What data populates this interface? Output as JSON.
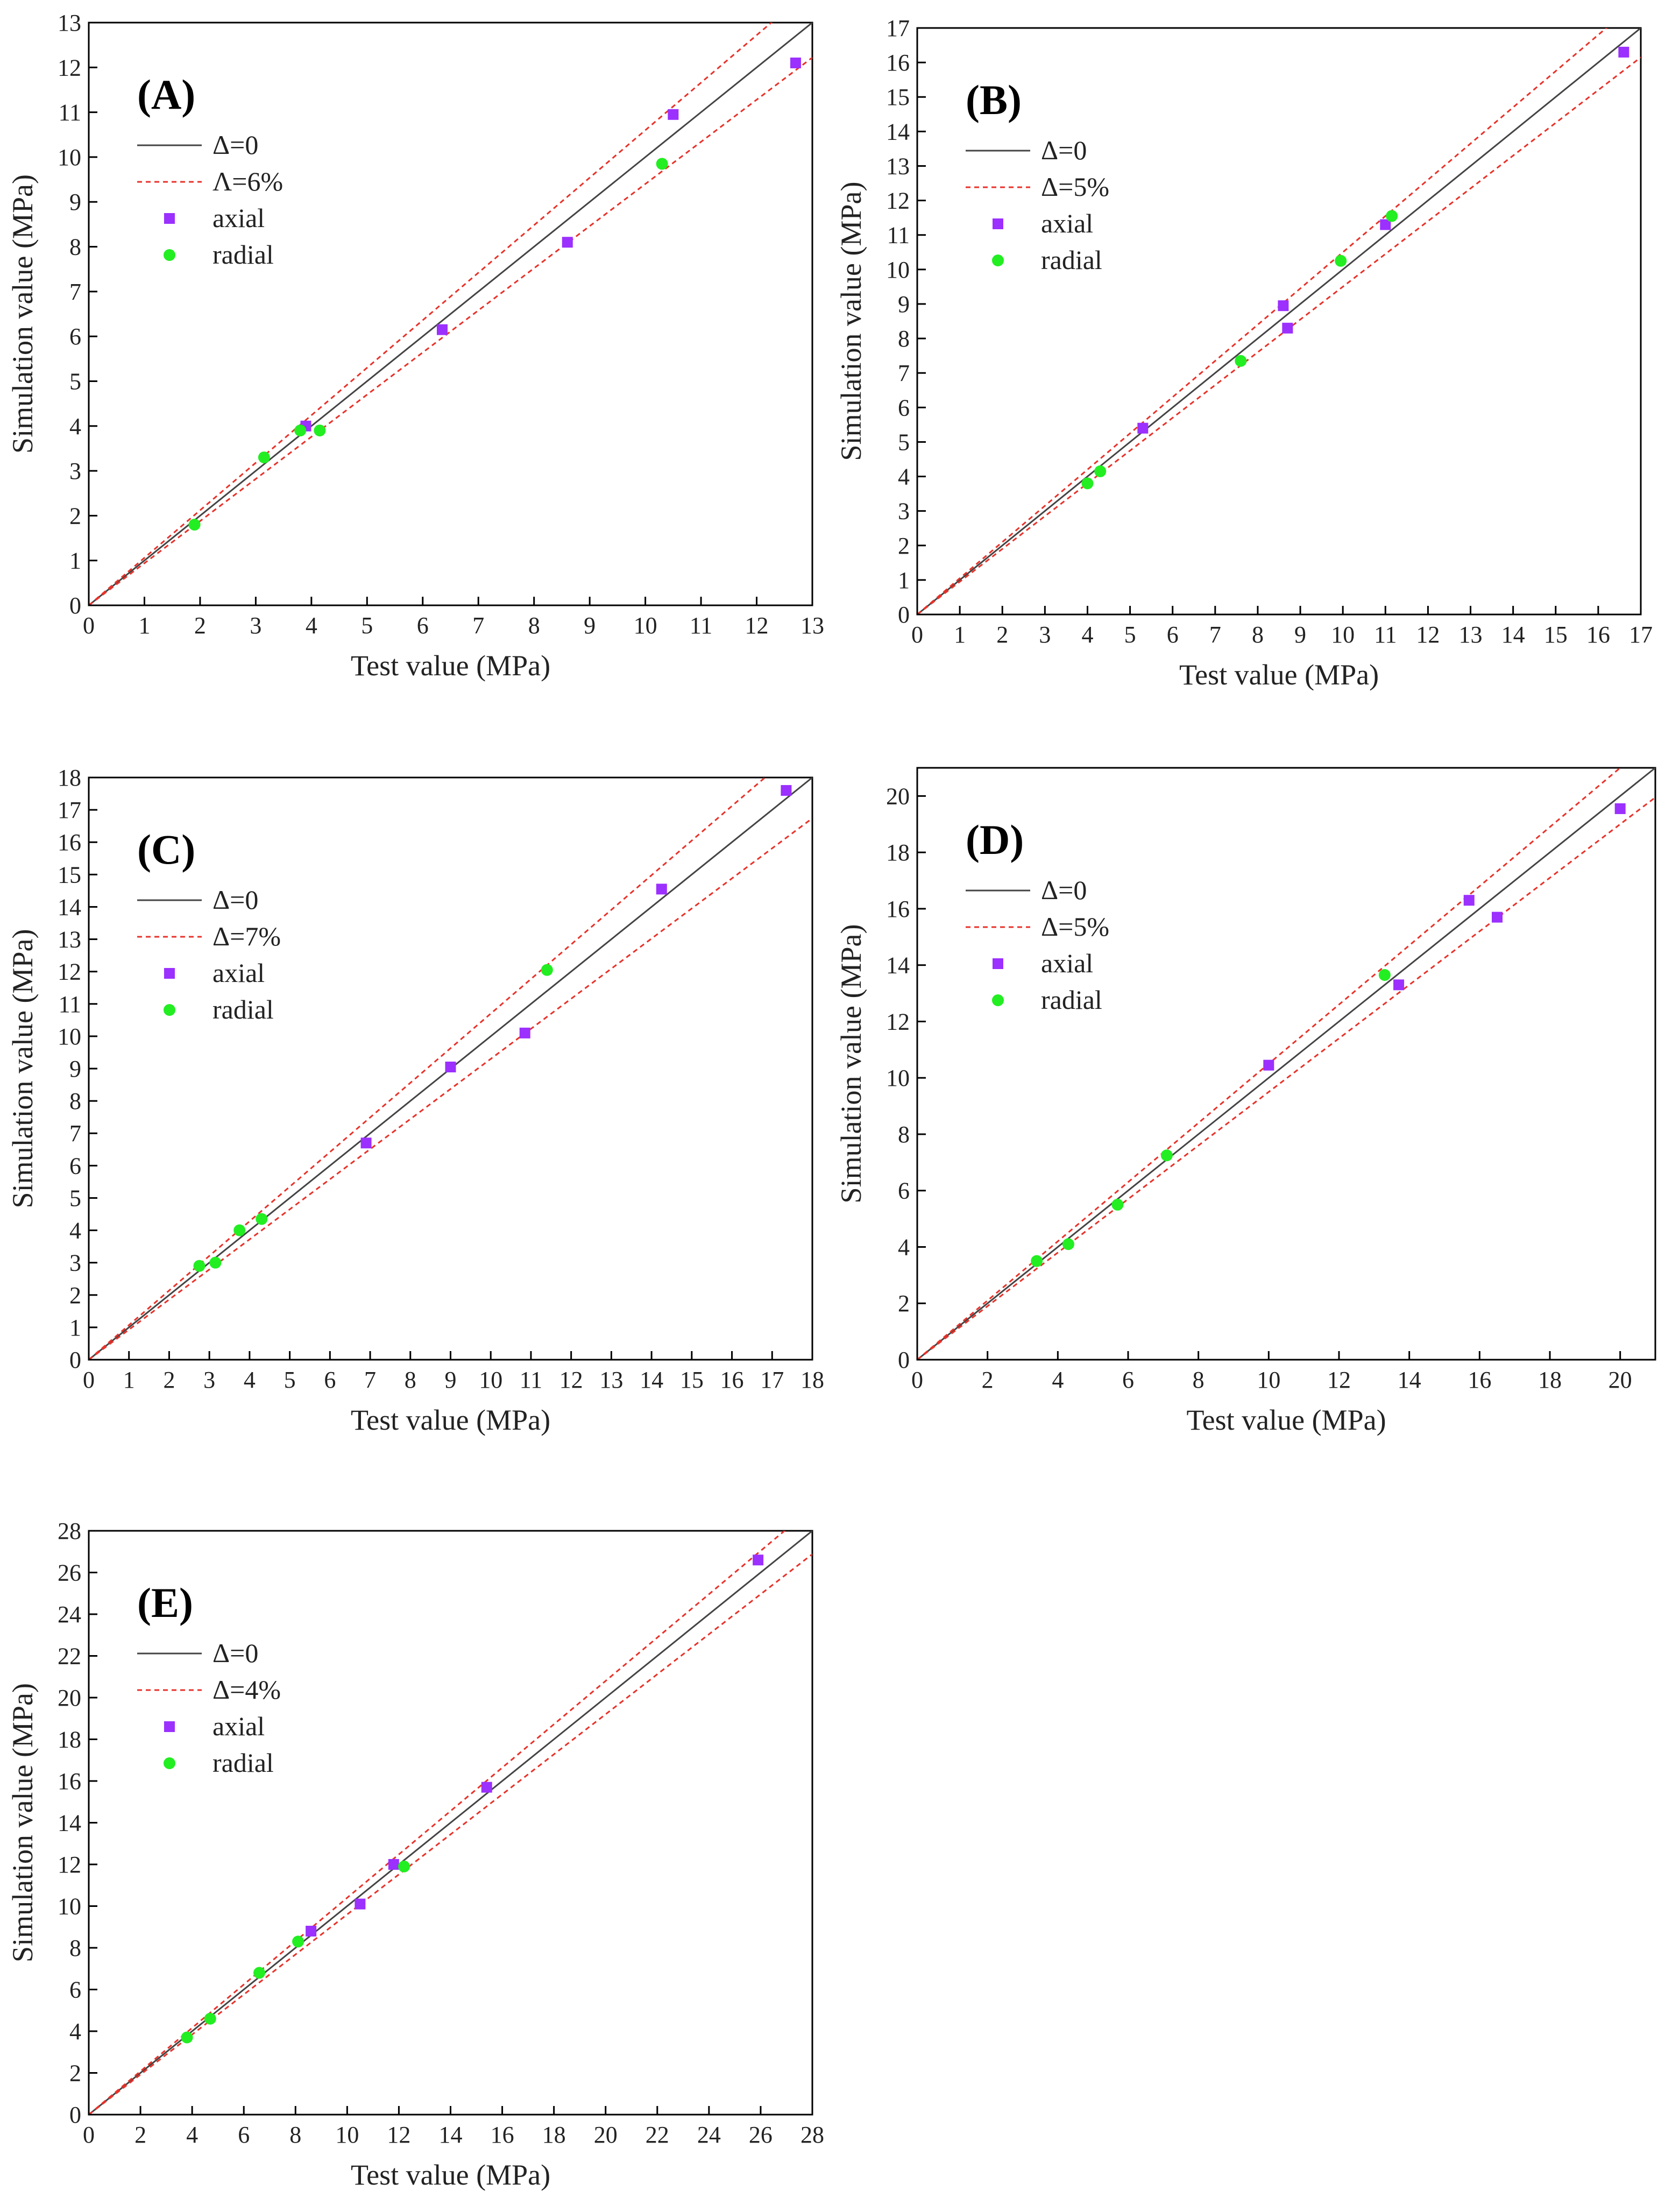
{
  "chart_data": [
    {
      "type": "scatter",
      "panel_label": "(A)",
      "xlabel": "Test value (MPa)",
      "ylabel": "Simulation value (MPa)",
      "xlim": [
        0,
        13
      ],
      "ylim": [
        0,
        13
      ],
      "xticks": [
        "0",
        "1",
        "2",
        "3",
        "4",
        "5",
        "6",
        "7",
        "8",
        "9",
        "10",
        "11",
        "12",
        "13"
      ],
      "yticks": [
        "0",
        "1",
        "2",
        "3",
        "4",
        "5",
        "6",
        "7",
        "8",
        "9",
        "10",
        "11",
        "12",
        "13"
      ],
      "legend": {
        "line_label": "Δ=0",
        "band_label": "Λ=6%",
        "axial_label": "axial",
        "radial_label": "radial",
        "position": "top-left"
      },
      "band_pct": 6,
      "series": [
        {
          "name": "axial",
          "marker": "square",
          "color": "#9b30ff",
          "points": [
            [
              3.9,
              4.0
            ],
            [
              6.35,
              6.15
            ],
            [
              8.6,
              8.1
            ],
            [
              10.5,
              10.95
            ],
            [
              12.7,
              12.1
            ]
          ]
        },
        {
          "name": "radial",
          "marker": "circle",
          "color": "#22ee22",
          "points": [
            [
              1.9,
              1.8
            ],
            [
              3.15,
              3.3
            ],
            [
              3.8,
              3.9
            ],
            [
              4.15,
              3.9
            ],
            [
              10.3,
              9.85
            ]
          ]
        }
      ]
    },
    {
      "type": "scatter",
      "panel_label": "(B)",
      "xlabel": "Test value (MPa)",
      "ylabel": "Simulation value (MPa)",
      "xlim": [
        0,
        17
      ],
      "ylim": [
        0,
        17
      ],
      "xticks": [
        "0",
        "1",
        "2",
        "3",
        "4",
        "5",
        "6",
        "7",
        "8",
        "9",
        "10",
        "11",
        "12",
        "13",
        "14",
        "15",
        "16",
        "17"
      ],
      "yticks": [
        "0",
        "1",
        "2",
        "3",
        "4",
        "5",
        "6",
        "7",
        "8",
        "9",
        "10",
        "11",
        "12",
        "13",
        "14",
        "15",
        "16",
        "17"
      ],
      "legend": {
        "line_label": "Δ=0",
        "band_label": "Δ=5%",
        "axial_label": "axial",
        "radial_label": "radial",
        "position": "top-left"
      },
      "band_pct": 5,
      "series": [
        {
          "name": "axial",
          "marker": "square",
          "color": "#9b30ff",
          "points": [
            [
              5.3,
              5.4
            ],
            [
              8.6,
              8.95
            ],
            [
              8.7,
              8.3
            ],
            [
              11.0,
              11.3
            ],
            [
              16.6,
              16.3
            ]
          ]
        },
        {
          "name": "radial",
          "marker": "circle",
          "color": "#22ee22",
          "points": [
            [
              4.0,
              3.8
            ],
            [
              4.3,
              4.15
            ],
            [
              7.6,
              7.35
            ],
            [
              9.95,
              10.25
            ],
            [
              11.15,
              11.55
            ]
          ]
        }
      ]
    },
    {
      "type": "scatter",
      "panel_label": "(C)",
      "xlabel": "Test value (MPa)",
      "ylabel": "Simulation value (MPa)",
      "xlim": [
        0,
        18
      ],
      "ylim": [
        0,
        18
      ],
      "xticks": [
        "0",
        "1",
        "2",
        "3",
        "4",
        "5",
        "6",
        "7",
        "8",
        "9",
        "10",
        "11",
        "12",
        "13",
        "14",
        "15",
        "16",
        "17",
        "18"
      ],
      "yticks": [
        "0",
        "1",
        "2",
        "3",
        "4",
        "5",
        "6",
        "7",
        "8",
        "9",
        "10",
        "11",
        "12",
        "13",
        "14",
        "15",
        "16",
        "17",
        "18"
      ],
      "legend": {
        "line_label": "Δ=0",
        "band_label": "Δ=7%",
        "axial_label": "axial",
        "radial_label": "radial",
        "position": "top-left"
      },
      "band_pct": 7,
      "series": [
        {
          "name": "axial",
          "marker": "square",
          "color": "#9b30ff",
          "points": [
            [
              6.9,
              6.7
            ],
            [
              9.0,
              9.05
            ],
            [
              10.85,
              10.1
            ],
            [
              14.25,
              14.55
            ],
            [
              17.35,
              17.6
            ]
          ]
        },
        {
          "name": "radial",
          "marker": "circle",
          "color": "#22ee22",
          "points": [
            [
              2.75,
              2.9
            ],
            [
              3.15,
              3.0
            ],
            [
              3.75,
              4.0
            ],
            [
              4.3,
              4.35
            ],
            [
              11.4,
              12.05
            ]
          ]
        }
      ]
    },
    {
      "type": "scatter",
      "panel_label": "(D)",
      "xlabel": "Test value (MPa)",
      "ylabel": "Simulation value (MPa)",
      "xlim": [
        0,
        21
      ],
      "ylim": [
        0,
        21
      ],
      "xticks": [
        "0",
        "2",
        "4",
        "6",
        "8",
        "10",
        "12",
        "14",
        "16",
        "18",
        "20"
      ],
      "yticks": [
        "0",
        "2",
        "4",
        "6",
        "8",
        "10",
        "12",
        "14",
        "16",
        "18",
        "20"
      ],
      "tick_step": 2,
      "legend": {
        "line_label": "Δ=0",
        "band_label": "Δ=5%",
        "axial_label": "axial",
        "radial_label": "radial",
        "position": "top-left"
      },
      "band_pct": 5,
      "series": [
        {
          "name": "axial",
          "marker": "square",
          "color": "#9b30ff",
          "points": [
            [
              10.0,
              10.45
            ],
            [
              13.7,
              13.3
            ],
            [
              15.7,
              16.3
            ],
            [
              16.5,
              15.7
            ],
            [
              20.0,
              19.55
            ]
          ]
        },
        {
          "name": "radial",
          "marker": "circle",
          "color": "#22ee22",
          "points": [
            [
              3.4,
              3.5
            ],
            [
              4.3,
              4.1
            ],
            [
              5.7,
              5.5
            ],
            [
              7.1,
              7.25
            ],
            [
              13.3,
              13.65
            ]
          ]
        }
      ]
    },
    {
      "type": "scatter",
      "panel_label": "(E)",
      "xlabel": "Test value (MPa)",
      "ylabel": "Simulation value (MPa)",
      "xlim": [
        0,
        28
      ],
      "ylim": [
        0,
        28
      ],
      "xticks": [
        "0",
        "2",
        "4",
        "6",
        "8",
        "10",
        "12",
        "14",
        "16",
        "18",
        "20",
        "22",
        "24",
        "26",
        "28"
      ],
      "yticks": [
        "0",
        "2",
        "4",
        "6",
        "8",
        "10",
        "12",
        "14",
        "16",
        "18",
        "20",
        "22",
        "24",
        "26",
        "28"
      ],
      "tick_step": 2,
      "legend": {
        "line_label": "Δ=0",
        "band_label": "Δ=4%",
        "axial_label": "axial",
        "radial_label": "radial",
        "position": "top-left"
      },
      "band_pct": 4,
      "series": [
        {
          "name": "axial",
          "marker": "square",
          "color": "#9b30ff",
          "points": [
            [
              8.6,
              8.8
            ],
            [
              10.5,
              10.1
            ],
            [
              11.8,
              12.0
            ],
            [
              15.4,
              15.7
            ],
            [
              25.9,
              26.6
            ]
          ]
        },
        {
          "name": "radial",
          "marker": "circle",
          "color": "#22ee22",
          "points": [
            [
              3.8,
              3.7
            ],
            [
              4.7,
              4.6
            ],
            [
              6.6,
              6.8
            ],
            [
              8.1,
              8.3
            ],
            [
              12.2,
              11.9
            ]
          ]
        }
      ]
    }
  ]
}
